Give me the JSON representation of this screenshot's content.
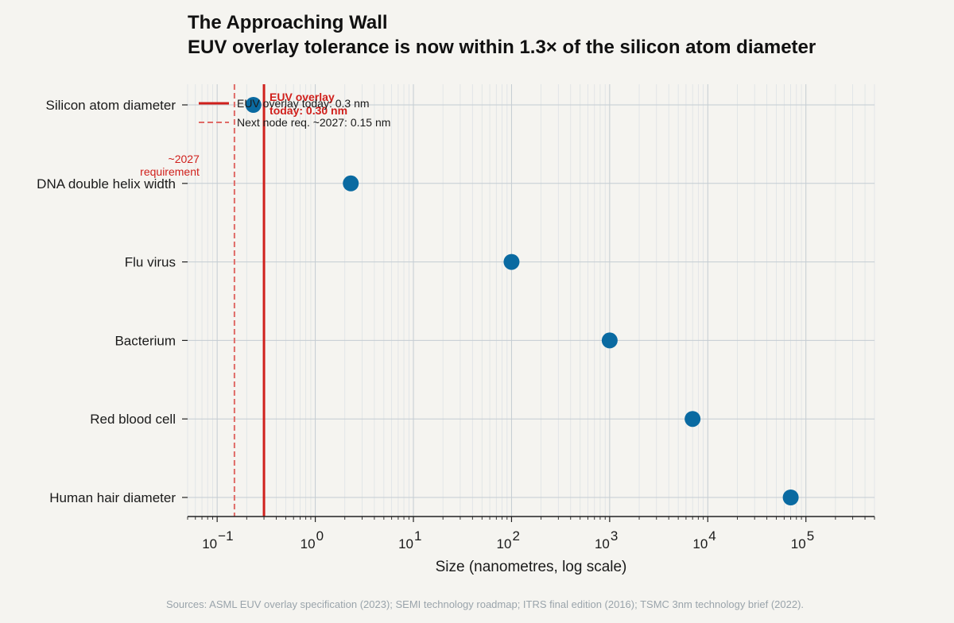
{
  "chart_data": {
    "type": "scatter",
    "title": "The Approaching Wall",
    "subtitle": "EUV overlay tolerance is now within 1.3× of the silicon atom diameter",
    "xlabel": "Size (nanometres, log scale)",
    "ylabel": "",
    "x_scale": "log",
    "xlim": [
      0.05,
      500000
    ],
    "grid": true,
    "legend_position": "top-left",
    "categories": [
      "Silicon atom diameter",
      "DNA double helix width",
      "Flu virus",
      "Bacterium",
      "Red blood cell",
      "Human hair diameter"
    ],
    "values": [
      0.234,
      2.3,
      100,
      1000,
      7000,
      70000
    ],
    "point_color": "#0a6aa1",
    "x_ticks": [
      {
        "base": "10",
        "exp": "−1",
        "value": 0.1
      },
      {
        "base": "10",
        "exp": "0",
        "value": 1
      },
      {
        "base": "10",
        "exp": "1",
        "value": 10
      },
      {
        "base": "10",
        "exp": "2",
        "value": 100
      },
      {
        "base": "10",
        "exp": "3",
        "value": 1000
      },
      {
        "base": "10",
        "exp": "4",
        "value": 10000
      },
      {
        "base": "10",
        "exp": "5",
        "value": 100000
      }
    ],
    "reference_lines": [
      {
        "value": 0.3,
        "style": "solid",
        "color": "#d0201c",
        "legend": "EUV overlay today: 0.3 nm",
        "annotation_lines": [
          "EUV overlay",
          "today: 0.30 nm"
        ]
      },
      {
        "value": 0.15,
        "style": "dashed",
        "color": "#e06a66",
        "legend": "Next node req. ~2027: 0.15 nm",
        "annotation_lines": [
          "~2027",
          "requirement"
        ]
      }
    ],
    "source": "Sources: ASML EUV overlay specification (2023); SEMI technology roadmap; ITRS final edition (2016); TSMC 3nm technology brief (2022)."
  }
}
